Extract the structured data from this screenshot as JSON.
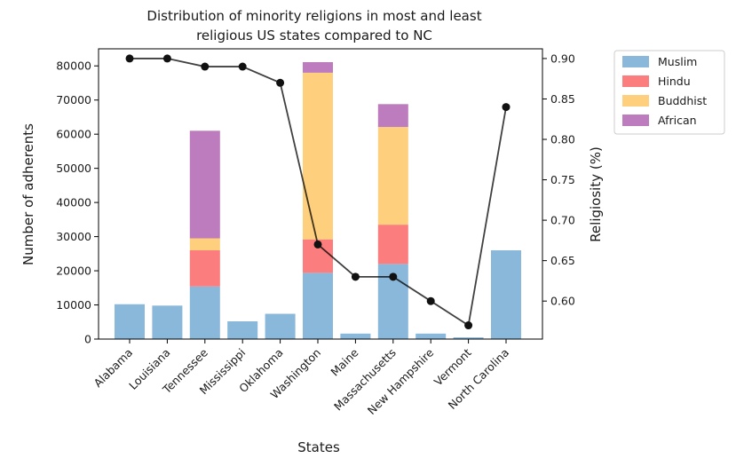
{
  "chart_data": {
    "type": "bar",
    "title": [
      "Distribution of minority religions in most and least",
      "religious US states compared to NC"
    ],
    "xlabel": "States",
    "ylabel": "Number of adherents",
    "y2label": "Religiosity (%)",
    "categories": [
      "Alabama",
      "Louisiana",
      "Tennessee",
      "Mississippi",
      "Oklahoma",
      "Washington",
      "Maine",
      "Massachusetts",
      "New Hampshire",
      "Vermont",
      "North Carolina"
    ],
    "stacked": true,
    "ylim": [
      0,
      85000
    ],
    "yticks": [
      0,
      10000,
      20000,
      30000,
      40000,
      50000,
      60000,
      70000,
      80000
    ],
    "y2lim": [
      0.553,
      0.912
    ],
    "y2ticks": [
      "0.60",
      "0.65",
      "0.70",
      "0.75",
      "0.80",
      "0.85",
      "0.90"
    ],
    "grid": false,
    "legend_position": "outside-top-right",
    "series": [
      {
        "name": "Muslim",
        "color": "#8ab8da",
        "values": [
          10200,
          9800,
          15400,
          5200,
          7400,
          19400,
          1600,
          22000,
          1600,
          500,
          26000
        ]
      },
      {
        "name": "Hindu",
        "color": "#fc7d7d",
        "values": [
          0,
          0,
          10600,
          0,
          0,
          9800,
          0,
          11500,
          0,
          0,
          0
        ]
      },
      {
        "name": "Buddhist",
        "color": "#fecf7c",
        "values": [
          0,
          0,
          3500,
          0,
          0,
          48800,
          0,
          28600,
          0,
          0,
          0
        ]
      },
      {
        "name": "African",
        "color": "#bd7cbd",
        "values": [
          0,
          0,
          31500,
          0,
          0,
          3100,
          0,
          6700,
          0,
          0,
          0
        ]
      }
    ],
    "line_series": {
      "axis": "right",
      "color": "#000000",
      "values": [
        0.9,
        0.9,
        0.89,
        0.89,
        0.87,
        0.67,
        0.63,
        0.63,
        0.6,
        0.57,
        0.84
      ]
    }
  }
}
